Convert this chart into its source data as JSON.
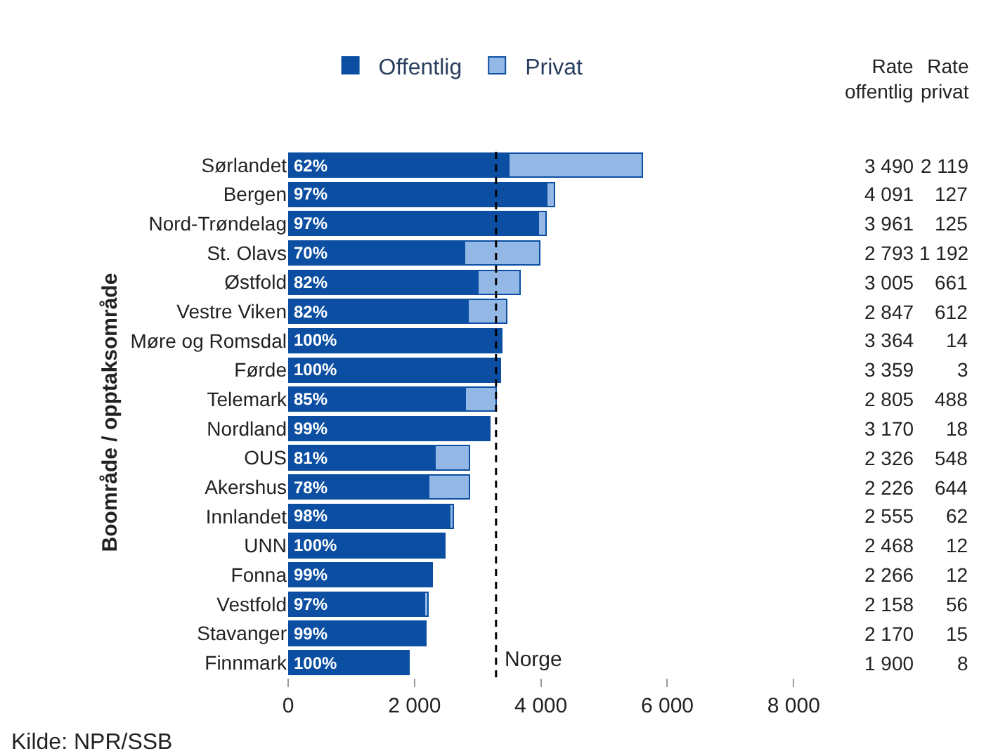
{
  "chart_data": {
    "type": "bar",
    "orientation": "horizontal",
    "stacked": true,
    "ylabel": "Boområde / opptaksområde",
    "categories": [
      "Sørlandet",
      "Bergen",
      "Nord-Trøndelag",
      "St. Olavs",
      "Østfold",
      "Vestre Viken",
      "Møre og Romsdal",
      "Førde",
      "Telemark",
      "Nordland",
      "OUS",
      "Akershus",
      "Innlandet",
      "UNN",
      "Fonna",
      "Vestfold",
      "Stavanger",
      "Finnmark"
    ],
    "series": [
      {
        "name": "Offentlig",
        "color": "#0b4ea2",
        "values": [
          3490,
          4091,
          3961,
          2793,
          3005,
          2847,
          3364,
          3359,
          2805,
          3170,
          2326,
          2226,
          2555,
          2468,
          2266,
          2158,
          2170,
          1900
        ],
        "value_labels": [
          "3 490",
          "4 091",
          "3 961",
          "2 793",
          "3 005",
          "2 847",
          "3 364",
          "3 359",
          "2 805",
          "3 170",
          "2 326",
          "2 226",
          "2 555",
          "2 468",
          "2 266",
          "2 158",
          "2 170",
          "1 900"
        ]
      },
      {
        "name": "Privat",
        "color": "#93b8e6",
        "values": [
          2119,
          127,
          125,
          1192,
          661,
          612,
          14,
          3,
          488,
          18,
          548,
          644,
          62,
          12,
          12,
          56,
          15,
          8
        ],
        "value_labels": [
          "2 119",
          "127",
          "125",
          "1 192",
          "661",
          "612",
          "14",
          "3",
          "488",
          "18",
          "548",
          "644",
          "62",
          "12",
          "12",
          "56",
          "15",
          "8"
        ]
      }
    ],
    "xlim": [
      0,
      8000
    ],
    "xticks": [
      0,
      2000,
      4000,
      6000,
      8000
    ],
    "ref_lines": [
      {
        "axis": "x",
        "value": 3290,
        "label": "Norge",
        "color": "#000000",
        "line_style": "dashed"
      }
    ],
    "legend": "top",
    "annotations": [
      "Rate\noffentlig",
      "Rate\nprivat",
      "Kilde: NPR/SSB",
      {
        "text": "62%",
        "y": "Sørlandet"
      },
      {
        "text": "97%",
        "y": "Bergen"
      },
      {
        "text": "97%",
        "y": "Nord-Trøndelag"
      },
      {
        "text": "70%",
        "y": "St. Olavs"
      },
      {
        "text": "82%",
        "y": "Østfold"
      },
      {
        "text": "82%",
        "y": "Vestre Viken"
      },
      {
        "text": "100%",
        "y": "Møre og Romsdal"
      },
      {
        "text": "100%",
        "y": "Førde"
      },
      {
        "text": "85%",
        "y": "Telemark"
      },
      {
        "text": "99%",
        "y": "Nordland"
      },
      {
        "text": "81%",
        "y": "OUS"
      },
      {
        "text": "78%",
        "y": "Akershus"
      },
      {
        "text": "98%",
        "y": "Innlandet"
      },
      {
        "text": "100%",
        "y": "UNN"
      },
      {
        "text": "99%",
        "y": "Fonna"
      },
      {
        "text": "97%",
        "y": "Vestfold"
      },
      {
        "text": "99%",
        "y": "Stavanger"
      },
      {
        "text": "100%",
        "y": "Finnmark"
      }
    ]
  }
}
